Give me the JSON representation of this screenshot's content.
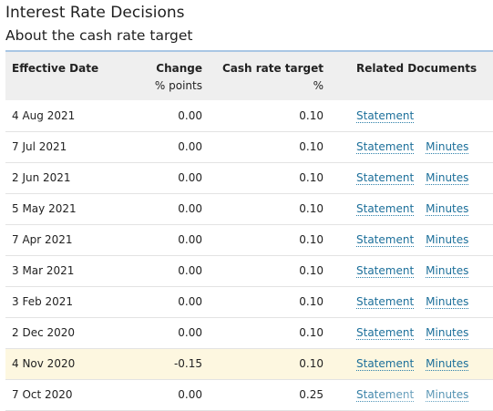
{
  "page": {
    "title": "Interest Rate Decisions",
    "subtitle": "About the cash rate target"
  },
  "table": {
    "headers": {
      "effective_date": "Effective Date",
      "change": "Change",
      "change_unit": "% points",
      "cash_rate": "Cash rate target",
      "cash_rate_unit": "%",
      "related_docs": "Related Documents"
    },
    "rows": [
      {
        "date": "4 Aug 2021",
        "change": "0.00",
        "rate": "0.10",
        "statement": "Statement",
        "minutes": ""
      },
      {
        "date": "7 Jul 2021",
        "change": "0.00",
        "rate": "0.10",
        "statement": "Statement",
        "minutes": "Minutes"
      },
      {
        "date": "2 Jun 2021",
        "change": "0.00",
        "rate": "0.10",
        "statement": "Statement",
        "minutes": "Minutes"
      },
      {
        "date": "5 May 2021",
        "change": "0.00",
        "rate": "0.10",
        "statement": "Statement",
        "minutes": "Minutes"
      },
      {
        "date": "7 Apr 2021",
        "change": "0.00",
        "rate": "0.10",
        "statement": "Statement",
        "minutes": "Minutes"
      },
      {
        "date": "3 Mar 2021",
        "change": "0.00",
        "rate": "0.10",
        "statement": "Statement",
        "minutes": "Minutes"
      },
      {
        "date": "3 Feb 2021",
        "change": "0.00",
        "rate": "0.10",
        "statement": "Statement",
        "minutes": "Minutes"
      },
      {
        "date": "2 Dec 2020",
        "change": "0.00",
        "rate": "0.10",
        "statement": "Statement",
        "minutes": "Minutes"
      },
      {
        "date": "4 Nov 2020",
        "change": "-0.15",
        "rate": "0.10",
        "statement": "Statement",
        "minutes": "Minutes"
      },
      {
        "date": "7 Oct 2020",
        "change": "0.00",
        "rate": "0.25",
        "statement": "Statement",
        "minutes": "Minutes"
      }
    ]
  }
}
